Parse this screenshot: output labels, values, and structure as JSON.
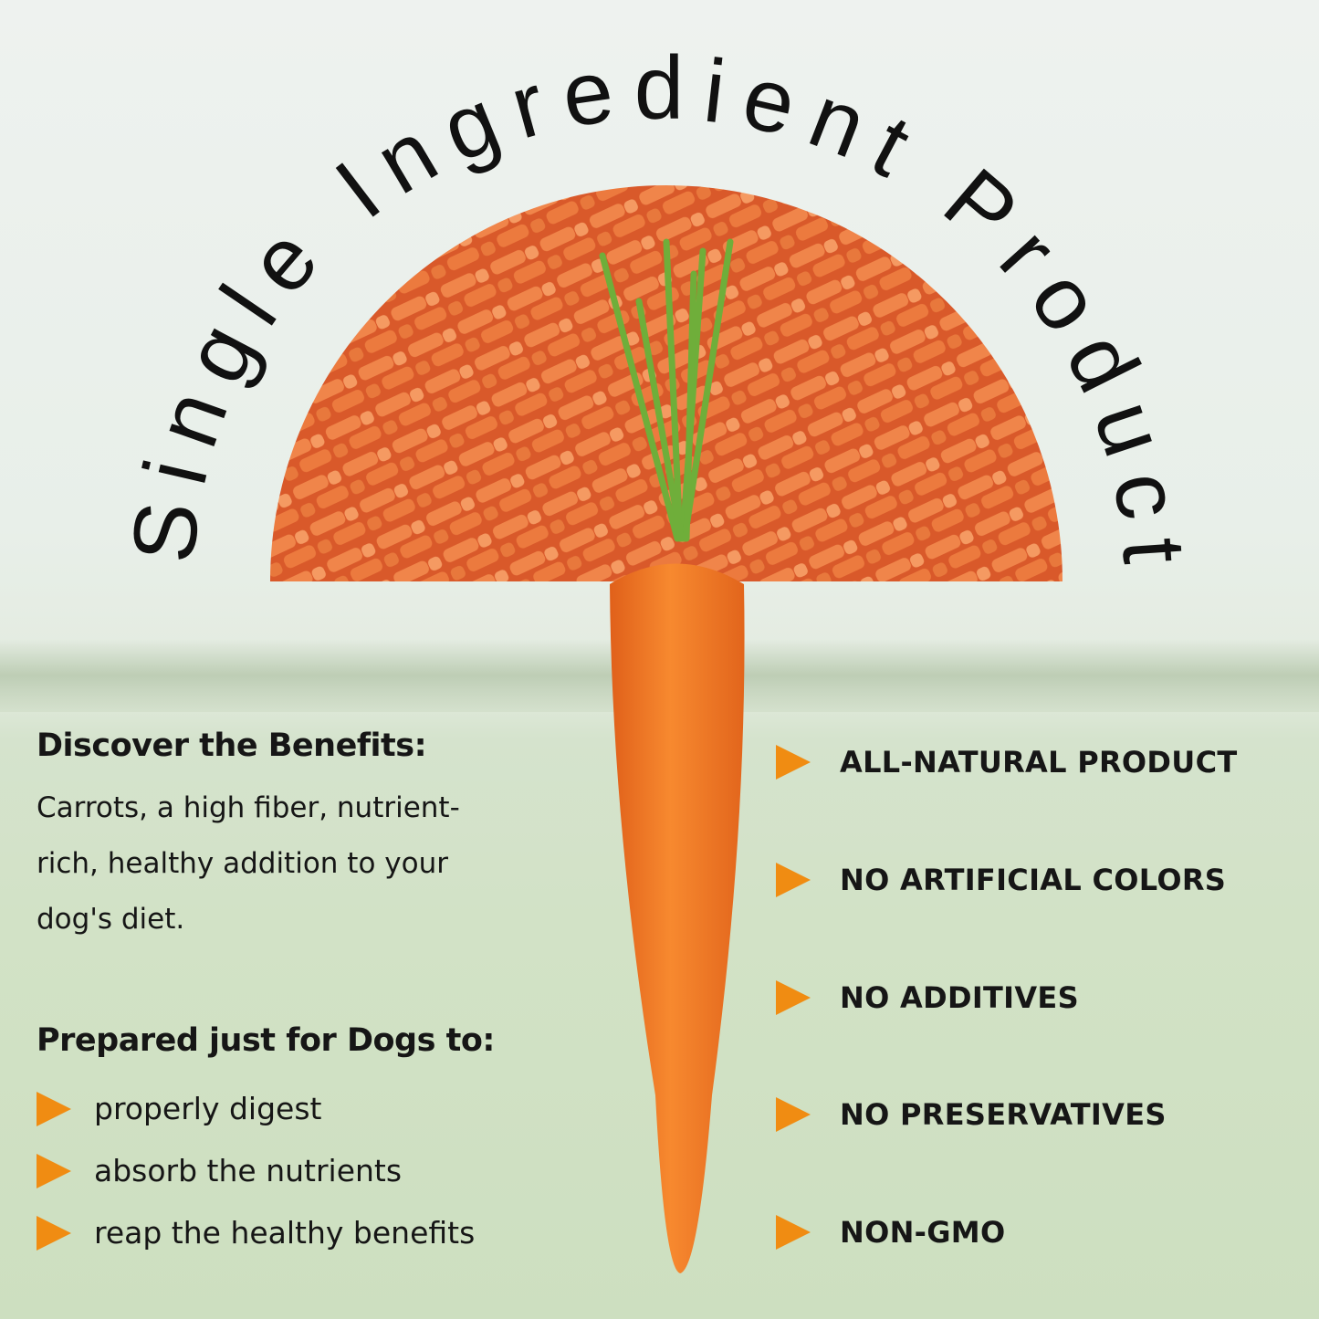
{
  "title": "Single Ingredient Product",
  "benefits": {
    "heading": "Discover the Benefits:",
    "lines": [
      "Carrots, a high fiber, nutrient-",
      "rich, healthy addition to your",
      "dog's diet."
    ]
  },
  "prepared": {
    "heading": "Prepared just for Dogs to:",
    "items": [
      "properly digest",
      "absorb the nutrients",
      "reap the healthy benefits"
    ]
  },
  "features": [
    "ALL-NATURAL PRODUCT",
    "NO ARTIFICIAL COLORS",
    "NO ADDITIVES",
    "NO PRESERVATIVES",
    "NON-GMO"
  ],
  "colors": {
    "accent": "#f08c12",
    "carrot": "#f07a26",
    "pellets": "#e86a2e"
  },
  "icons": {
    "bullet": "orange-arrow-icon"
  }
}
